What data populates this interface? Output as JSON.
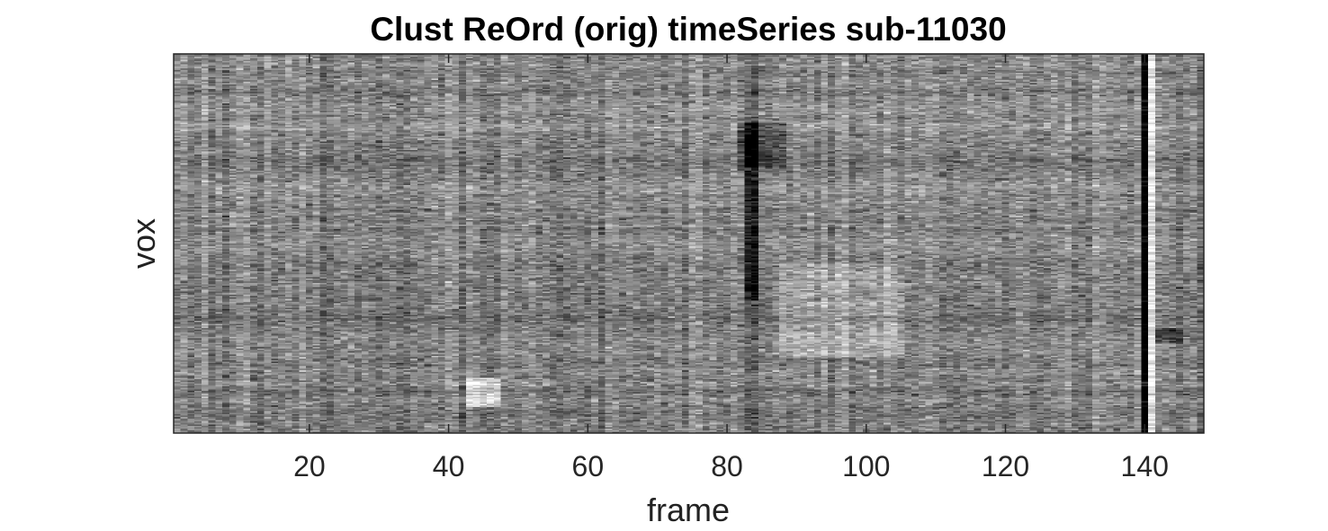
{
  "chart_data": {
    "type": "heatmap",
    "title": "Clust ReOrd (orig) timeSeries sub-11030",
    "xlabel": "frame",
    "ylabel": "vox",
    "xlim": [
      0.5,
      148.5
    ],
    "xticks": [
      20,
      40,
      60,
      80,
      100,
      120,
      140
    ],
    "xtick_labels": [
      "20",
      "40",
      "60",
      "80",
      "100",
      "120",
      "140"
    ],
    "yticks": [],
    "colormap": "gray",
    "n_frames": 148,
    "features": [
      {
        "frames": [
          83,
          84
        ],
        "effect": "dark column (low intensity)"
      },
      {
        "frames": [
          140,
          140
        ],
        "effect": "dark column (low intensity)"
      },
      {
        "frames": [
          141,
          141
        ],
        "effect": "bright column (high intensity)"
      },
      {
        "frames": [
          43,
          47
        ],
        "effect": "bright patch near bottom"
      },
      {
        "frames": [
          88,
          105
        ],
        "effect": "brighter region in lower half"
      }
    ]
  }
}
